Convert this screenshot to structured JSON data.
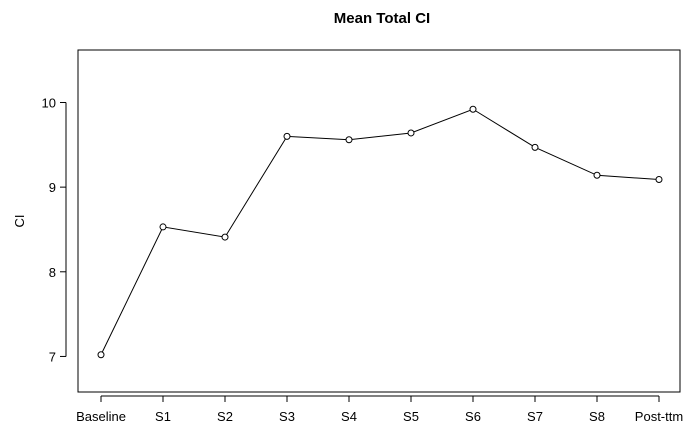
{
  "chart_data": {
    "type": "line",
    "title": "Mean Total CI",
    "xlabel": "",
    "ylabel": "CI",
    "categories": [
      "Baseline",
      "S1",
      "S2",
      "S3",
      "S4",
      "S5",
      "S6",
      "S7",
      "S8",
      "Post-ttm"
    ],
    "values": [
      7.02,
      8.53,
      8.41,
      9.6,
      9.56,
      9.64,
      9.92,
      9.47,
      9.14,
      9.09
    ],
    "ylim": [
      6.58,
      10.62
    ],
    "yticks": [
      7,
      8,
      9,
      10
    ],
    "grid": false,
    "legend": "none",
    "marker": "open-circle"
  }
}
